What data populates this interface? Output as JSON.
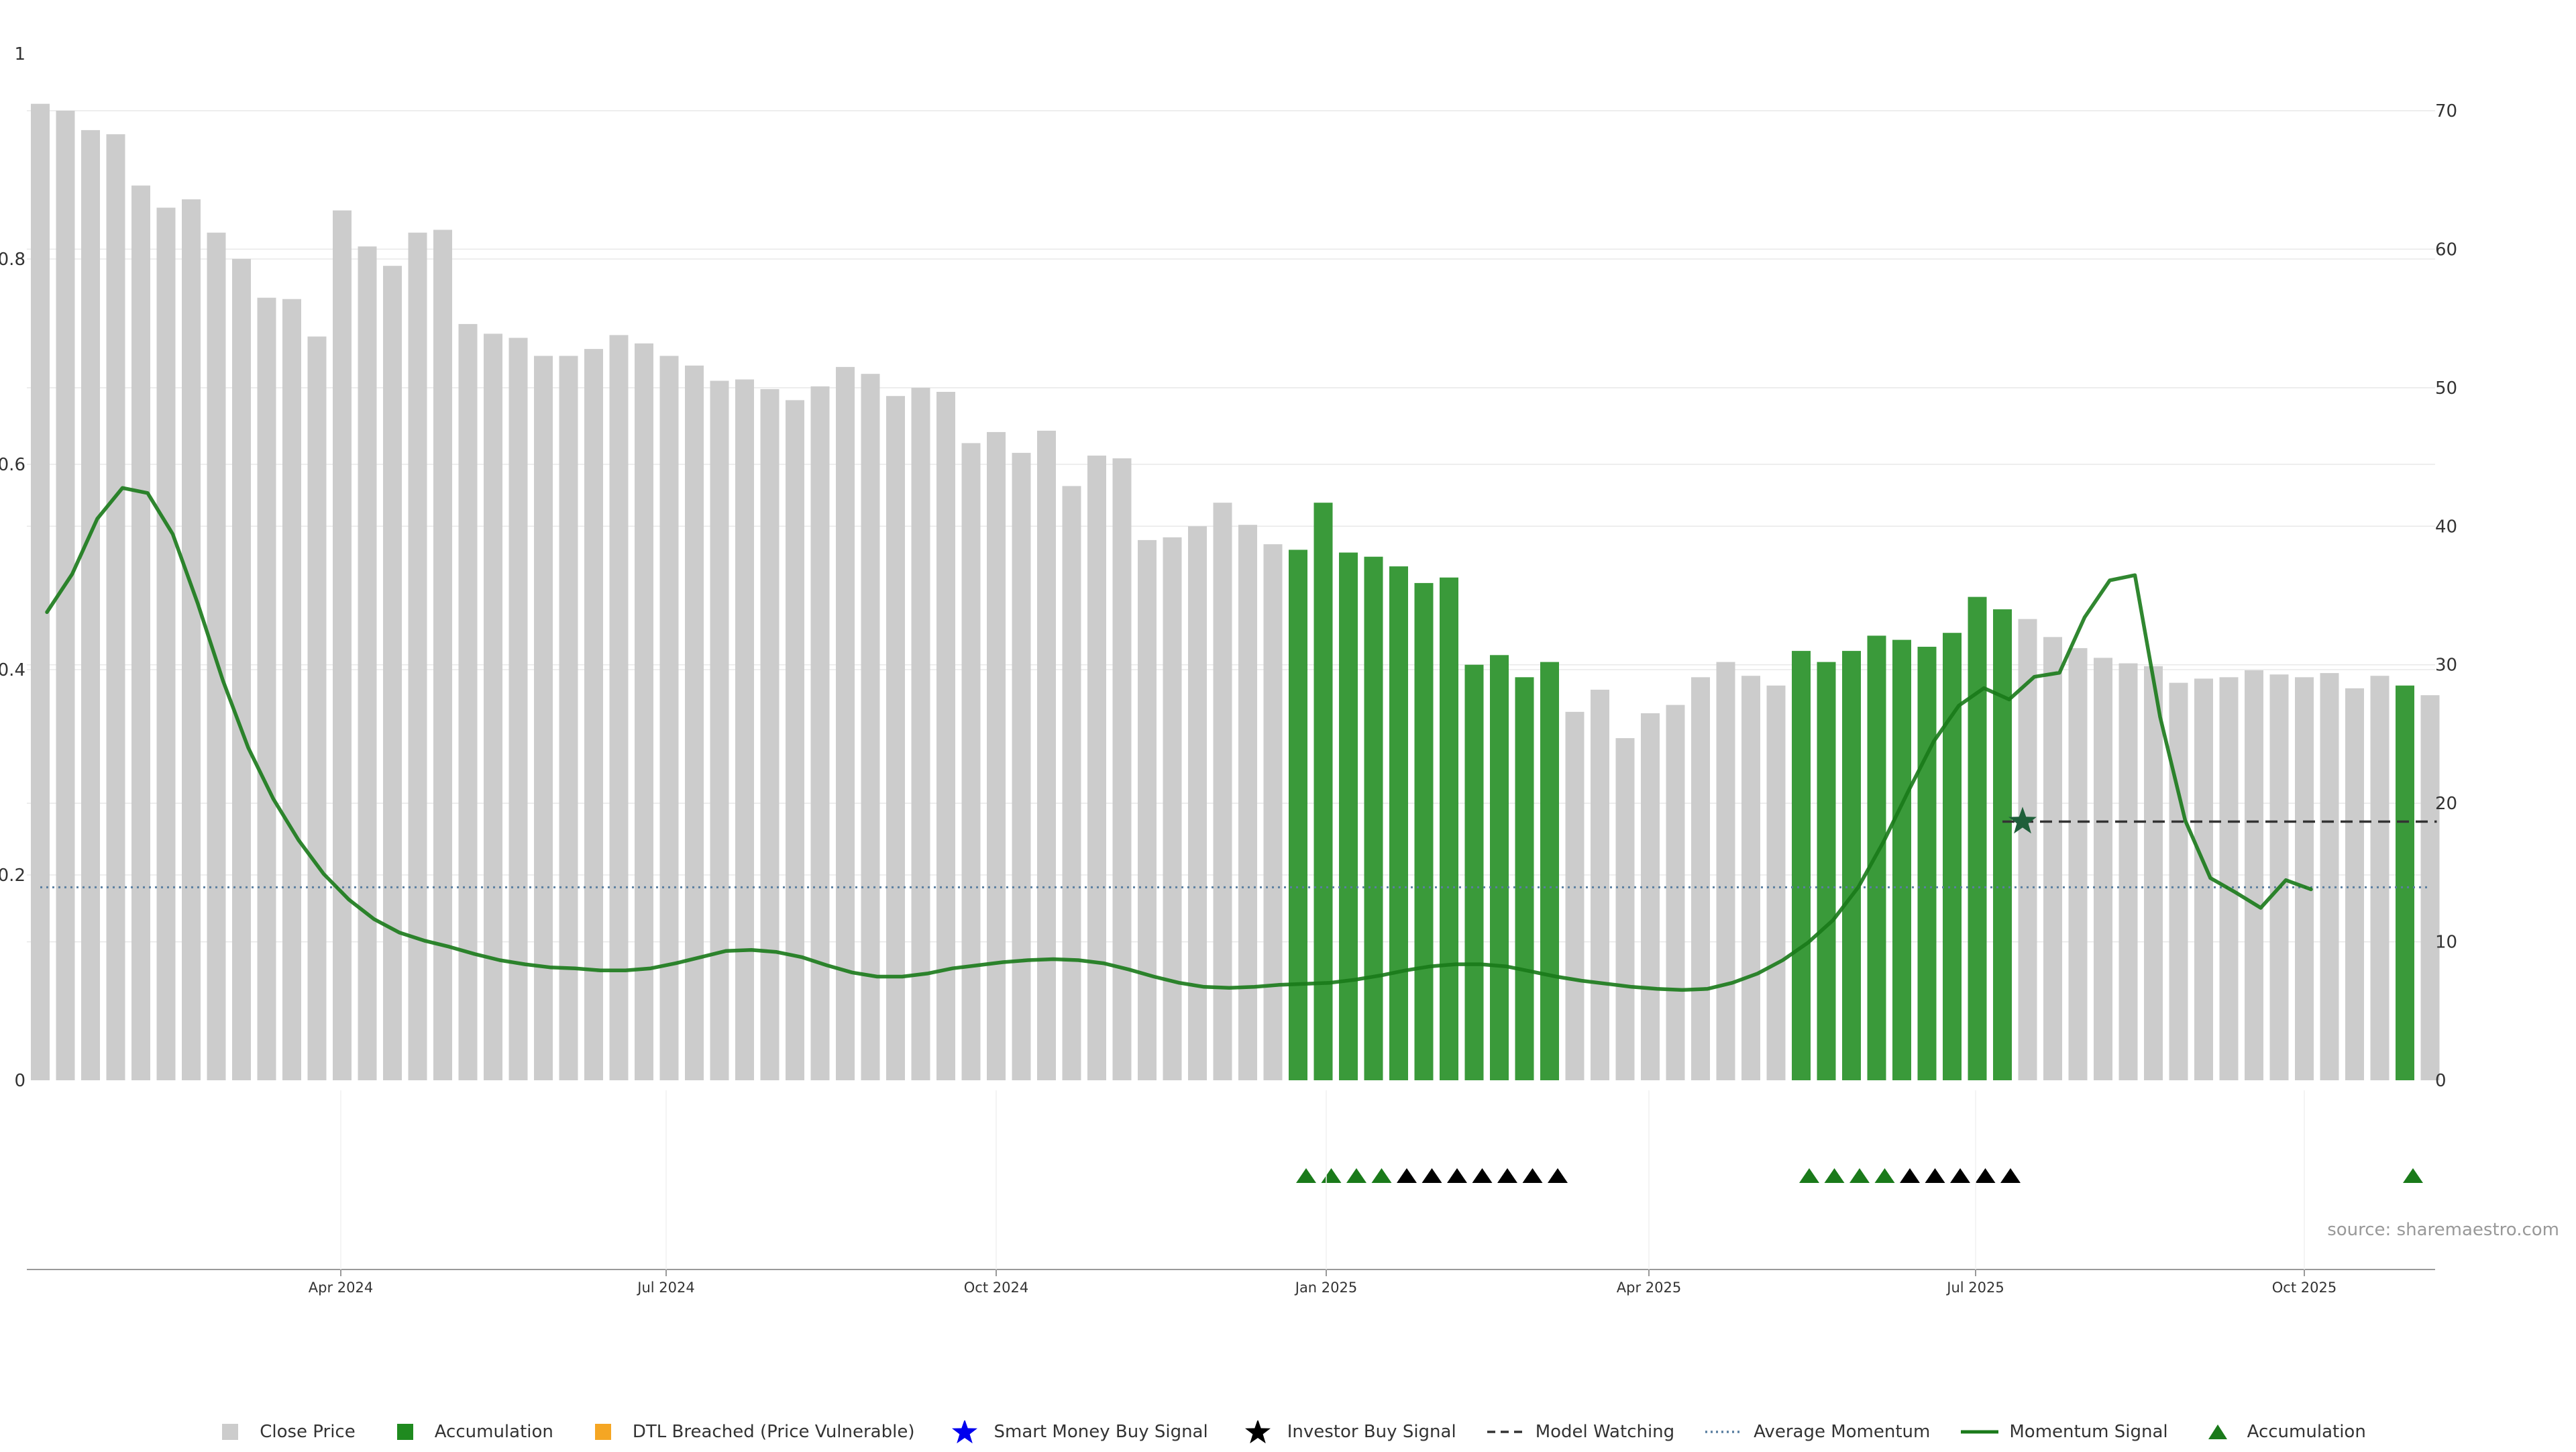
{
  "chart_data": {
    "type": "bar",
    "title": "",
    "source_label": "source: sharemaestro.com",
    "x_tick_labels": [
      "Apr 2024",
      "Jul 2024",
      "Oct 2024",
      "Jan 2025",
      "Apr 2025",
      "Jul 2025",
      "Oct 2025"
    ],
    "left_axis": {
      "ticks": [
        "0",
        "0.2",
        "0.4",
        "0.6",
        "0.8",
        "1"
      ],
      "ylim": [
        0,
        1.0
      ]
    },
    "right_axis": {
      "ticks": [
        "0",
        "10",
        "20",
        "30",
        "40",
        "50",
        "60",
        "70"
      ],
      "ylim": [
        0,
        77
      ]
    },
    "close_price": [
      70.5,
      70,
      68.6,
      68.3,
      64.6,
      63,
      63.6,
      61.2,
      59.3,
      56.5,
      56.4,
      53.7,
      62.8,
      60.2,
      58.8,
      61.2,
      61.4,
      54.6,
      53.9,
      53.6,
      52.3,
      52.3,
      52.8,
      53.8,
      53.2,
      52.3,
      51.6,
      50.5,
      50.6,
      49.9,
      49.1,
      50.1,
      51.5,
      51,
      49.4,
      50,
      49.7,
      46,
      46.8,
      45.3,
      46.9,
      42.9,
      45.1,
      44.9,
      39,
      39.2,
      40,
      41.7,
      40.1,
      38.7,
      38.3,
      41.7,
      38.1,
      37.8,
      37.1,
      35.9,
      36.3,
      30,
      30.7,
      29.1,
      30.2,
      26.6,
      28.2,
      24.7,
      26.5,
      27.1,
      29.1,
      30.2,
      29.2,
      28.5,
      31,
      30.2,
      31,
      32.1,
      31.8,
      31.3,
      32.3,
      34.9,
      34,
      33.3,
      32,
      31.2,
      30.5,
      30.1,
      29.9,
      28.7,
      29,
      29.1,
      29.6,
      29.3,
      29.1,
      29.4,
      28.3,
      29.2,
      28.5,
      27.8
    ],
    "accumulation_bars": [
      50,
      51,
      52,
      53,
      54,
      55,
      56,
      57,
      58,
      59,
      60,
      70,
      71,
      72,
      73,
      74,
      75,
      76,
      77,
      78,
      94
    ],
    "momentum_signal": [
      0.456,
      0.493,
      0.547,
      0.577,
      0.572,
      0.532,
      0.464,
      0.389,
      0.324,
      0.274,
      0.234,
      0.201,
      0.176,
      0.157,
      0.144,
      0.136,
      0.13,
      0.123,
      0.117,
      0.113,
      0.11,
      0.109,
      0.107,
      0.107,
      0.109,
      0.114,
      0.12,
      0.126,
      0.127,
      0.125,
      0.12,
      0.112,
      0.105,
      0.101,
      0.101,
      0.104,
      0.109,
      0.112,
      0.115,
      0.117,
      0.118,
      0.117,
      0.114,
      0.108,
      0.101,
      0.095,
      0.091,
      0.09,
      0.091,
      0.093,
      0.094,
      0.095,
      0.098,
      0.102,
      0.107,
      0.111,
      0.113,
      0.113,
      0.111,
      0.106,
      0.101,
      0.097,
      0.094,
      0.091,
      0.089,
      0.088,
      0.089,
      0.095,
      0.104,
      0.117,
      0.134,
      0.156,
      0.188,
      0.232,
      0.282,
      0.33,
      0.365,
      0.382,
      0.371,
      0.393,
      0.397,
      0.451,
      0.487,
      0.492,
      0.354,
      0.253,
      0.197,
      0.183,
      0.168,
      0.195,
      0.186
    ],
    "momentum_x_shift": 10,
    "average_momentum": 0.188,
    "model_watching_level": 0.252,
    "model_watching_start_index": 78,
    "investor_buy_signal_star": {
      "index": 78,
      "value": 0.252
    },
    "green_triangle_indices": [
      50,
      51,
      52,
      53,
      70,
      71,
      72,
      73,
      94
    ],
    "black_triangle_indices": [
      54,
      55,
      56,
      57,
      58,
      59,
      60,
      74,
      75,
      76,
      77,
      78
    ],
    "colors": {
      "close_price": "#cccccc",
      "accumulation": "#3a9a3a",
      "dtl_breached": "#f5a623",
      "smart_money": "#0000ee",
      "investor_signal": "#000000",
      "momentum_line": "#1a7a1a",
      "average_momentum": "#5a7fa0",
      "grid": "#e8e8e8",
      "triangle_green": "#1a7a1a",
      "triangle_black": "#000000"
    },
    "legend": [
      {
        "key": "close",
        "label": "Close Price",
        "icon": "gray-square"
      },
      {
        "key": "accum",
        "label": "Accumulation",
        "icon": "green-square"
      },
      {
        "key": "dtl",
        "label": "DTL Breached (Price Vulnerable)",
        "icon": "orange-square"
      },
      {
        "key": "smart",
        "label": "Smart Money Buy Signal",
        "icon": "blue-star"
      },
      {
        "key": "investor",
        "label": "Investor Buy Signal",
        "icon": "black-star"
      },
      {
        "key": "watch",
        "label": "Model Watching",
        "icon": "dashed-line"
      },
      {
        "key": "avgmom",
        "label": "Average Momentum",
        "icon": "dotted-line"
      },
      {
        "key": "mom",
        "label": "Momentum Signal",
        "icon": "solid-line"
      },
      {
        "key": "accumtri",
        "label": "Accumulation",
        "icon": "green-triangle"
      }
    ],
    "grid": true,
    "legend_position": "bottom-center"
  }
}
